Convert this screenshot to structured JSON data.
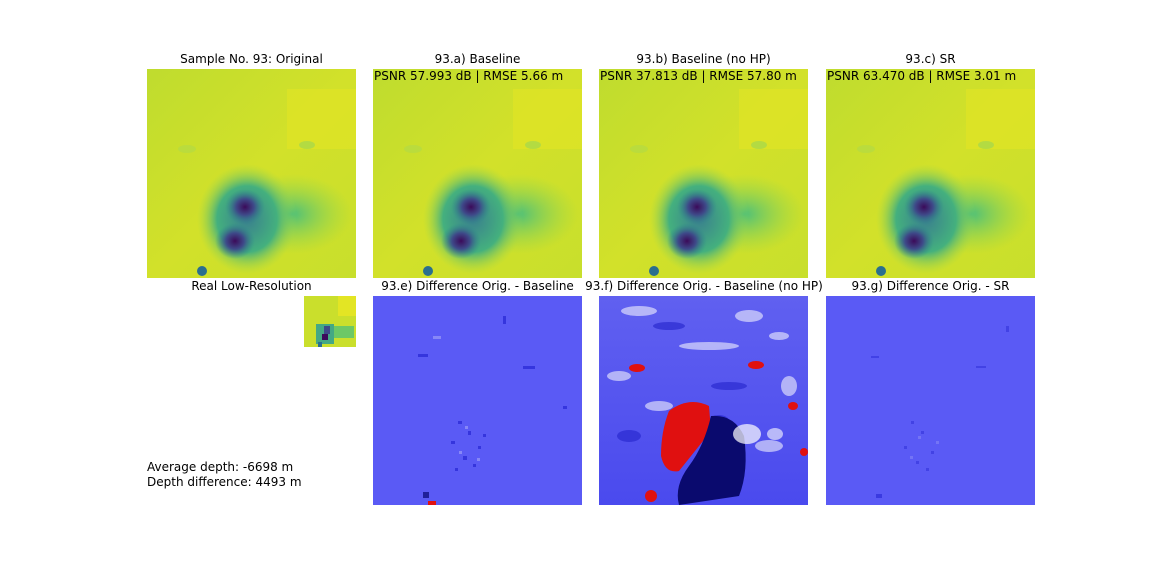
{
  "figure": {
    "original_title": "Sample No. 93: Original",
    "lowres_title": "Real Low-Resolution",
    "avg_depth_text": "Average depth: -6698 m",
    "depth_diff_text": "Depth difference: 4493 m"
  },
  "panels": {
    "baseline": {
      "title": "93.a) Baseline",
      "metric": "PSNR 57.993 dB | RMSE 5.66 m"
    },
    "baseline_nohp": {
      "title": "93.b) Baseline (no HP)",
      "metric": "PSNR 37.813 dB | RMSE 57.80 m"
    },
    "sr": {
      "title": "93.c) SR",
      "metric": "PSNR 63.470 dB | RMSE 3.01 m"
    },
    "diff_baseline": {
      "title": "93.e) Difference Orig. - Baseline"
    },
    "diff_nohp": {
      "title": "93.f) Difference Orig. - Baseline (no HP)"
    },
    "diff_sr": {
      "title": "93.g) Difference Orig. - SR"
    }
  },
  "chart_data": {
    "type": "heatmap",
    "depth_colormap": "viridis",
    "difference_colormap": "bwr",
    "colors": {
      "viridis_high": "#e3e524",
      "viridis_low": "#3b0b5a",
      "diff_base": "#5a5af5",
      "diff_red": "#e01010",
      "diff_navy": "#0a0a6e"
    }
  }
}
